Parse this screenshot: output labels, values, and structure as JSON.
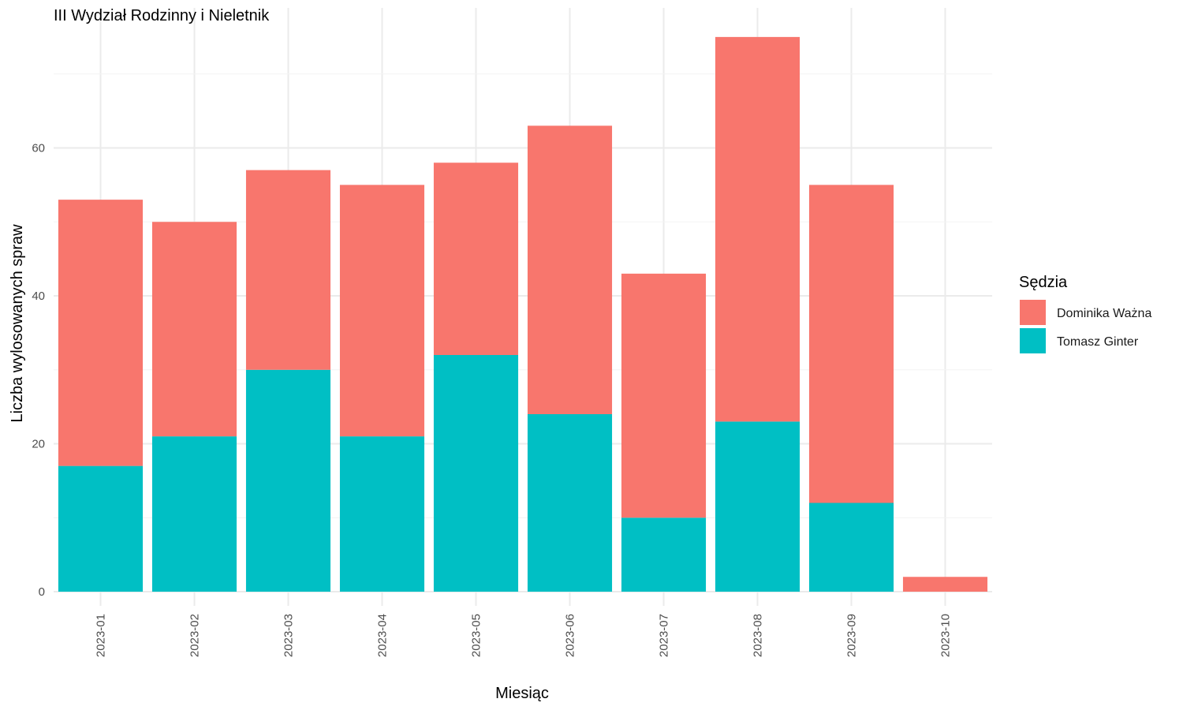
{
  "chart_data": {
    "type": "bar",
    "stacked": true,
    "title": "III Wydział Rodzinny i Nieletnik",
    "xlabel": "Miesiąc",
    "ylabel": "Liczba wylosowanych spraw",
    "categories": [
      "2023-01",
      "2023-02",
      "2023-03",
      "2023-04",
      "2023-05",
      "2023-06",
      "2023-07",
      "2023-08",
      "2023-09",
      "2023-10"
    ],
    "series": [
      {
        "name": "Tomasz Ginter",
        "color": "#00BFC4",
        "values": [
          17,
          21,
          30,
          21,
          32,
          24,
          10,
          23,
          12,
          0
        ]
      },
      {
        "name": "Dominika Ważna",
        "color": "#F8766D",
        "values": [
          36,
          29,
          27,
          34,
          26,
          39,
          33,
          52,
          43,
          2
        ]
      }
    ],
    "ylim": [
      0,
      78
    ],
    "yticks": [
      0,
      20,
      40,
      60
    ],
    "grid": true,
    "legend": {
      "title": "Sędzia",
      "position": "right",
      "order": [
        "Dominika Ważna",
        "Tomasz Ginter"
      ]
    }
  }
}
